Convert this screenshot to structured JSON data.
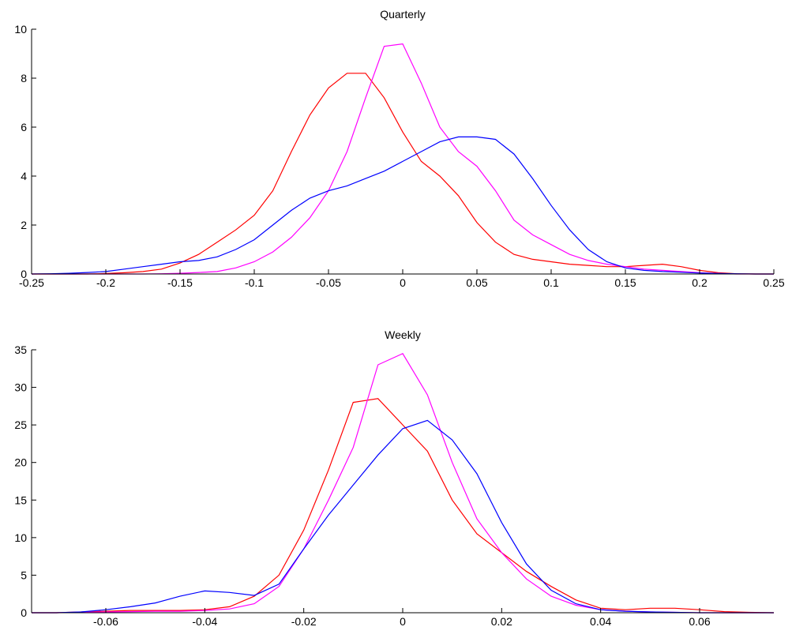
{
  "chart_data": [
    {
      "type": "line",
      "title": "Quarterly",
      "x": [
        -0.25,
        -0.2375,
        -0.225,
        -0.2125,
        -0.2,
        -0.1875,
        -0.175,
        -0.1625,
        -0.15,
        -0.1375,
        -0.125,
        -0.1125,
        -0.1,
        -0.0875,
        -0.075,
        -0.0625,
        -0.05,
        -0.0375,
        -0.025,
        -0.0125,
        0,
        0.0125,
        0.025,
        0.0375,
        0.05,
        0.0625,
        0.075,
        0.0875,
        0.1,
        0.1125,
        0.125,
        0.1375,
        0.15,
        0.1625,
        0.175,
        0.1875,
        0.2,
        0.2125,
        0.225,
        0.2375,
        0.25
      ],
      "series": [
        {
          "color": "#ff0000",
          "values": [
            0,
            0,
            0,
            0,
            0.02,
            0.05,
            0.1,
            0.2,
            0.45,
            0.8,
            1.3,
            1.8,
            2.4,
            3.4,
            5.0,
            6.5,
            7.6,
            8.2,
            8.2,
            7.2,
            5.8,
            4.6,
            4.0,
            3.2,
            2.1,
            1.3,
            0.8,
            0.6,
            0.5,
            0.4,
            0.35,
            0.3,
            0.3,
            0.35,
            0.4,
            0.3,
            0.15,
            0.05,
            0.01,
            0,
            0
          ]
        },
        {
          "color": "#ff00ff",
          "values": [
            0,
            0,
            0,
            0,
            0,
            0,
            0,
            0.01,
            0.03,
            0.06,
            0.1,
            0.25,
            0.5,
            0.9,
            1.5,
            2.3,
            3.4,
            5.0,
            7.2,
            9.3,
            9.4,
            7.8,
            6.0,
            5.0,
            4.4,
            3.4,
            2.2,
            1.6,
            1.2,
            0.8,
            0.55,
            0.4,
            0.3,
            0.2,
            0.15,
            0.1,
            0.05,
            0.02,
            0,
            0,
            0
          ]
        },
        {
          "color": "#0000ff",
          "values": [
            0,
            0.01,
            0.03,
            0.06,
            0.1,
            0.2,
            0.3,
            0.4,
            0.5,
            0.55,
            0.7,
            1.0,
            1.4,
            2.0,
            2.6,
            3.1,
            3.4,
            3.6,
            3.9,
            4.2,
            4.6,
            5.0,
            5.4,
            5.6,
            5.6,
            5.5,
            4.9,
            3.9,
            2.8,
            1.8,
            1.0,
            0.5,
            0.25,
            0.15,
            0.1,
            0.07,
            0.04,
            0.02,
            0.01,
            0,
            0
          ]
        }
      ],
      "xlim": [
        -0.25,
        0.25
      ],
      "ylim": [
        0,
        10
      ],
      "xticks": [
        -0.25,
        -0.2,
        -0.15,
        -0.1,
        -0.05,
        0,
        0.05,
        0.1,
        0.15,
        0.2,
        0.25
      ],
      "yticks": [
        0,
        2,
        4,
        6,
        8,
        10
      ]
    },
    {
      "type": "line",
      "title": "Weekly",
      "x": [
        -0.075,
        -0.07,
        -0.065,
        -0.06,
        -0.055,
        -0.05,
        -0.045,
        -0.04,
        -0.035,
        -0.03,
        -0.025,
        -0.02,
        -0.015,
        -0.01,
        -0.005,
        0,
        0.005,
        0.01,
        0.015,
        0.02,
        0.025,
        0.03,
        0.035,
        0.04,
        0.045,
        0.05,
        0.055,
        0.06,
        0.065,
        0.07,
        0.075
      ],
      "series": [
        {
          "color": "#ff0000",
          "values": [
            0,
            0,
            0.1,
            0.2,
            0.3,
            0.3,
            0.3,
            0.4,
            0.8,
            2.2,
            5.0,
            11,
            19,
            28,
            28.5,
            25,
            21.5,
            15,
            10.5,
            8,
            5.5,
            3.5,
            1.7,
            0.6,
            0.4,
            0.6,
            0.6,
            0.4,
            0.15,
            0.05,
            0
          ]
        },
        {
          "color": "#ff00ff",
          "values": [
            0,
            0,
            0.05,
            0.1,
            0.15,
            0.2,
            0.2,
            0.3,
            0.5,
            1.2,
            3.5,
            8.5,
            15,
            22,
            33,
            34.5,
            29,
            20,
            12.5,
            8,
            4.5,
            2.2,
            1.0,
            0.4,
            0.2,
            0.1,
            0.05,
            0,
            0,
            0,
            0
          ]
        },
        {
          "color": "#0000ff",
          "values": [
            0,
            0,
            0.1,
            0.4,
            0.8,
            1.3,
            2.2,
            2.9,
            2.7,
            2.3,
            3.8,
            8.5,
            13,
            17,
            21,
            24.5,
            25.6,
            23,
            18.5,
            12,
            6.5,
            3.0,
            1.2,
            0.4,
            0.2,
            0.1,
            0.05,
            0,
            0,
            0,
            0
          ]
        }
      ],
      "xlim": [
        -0.075,
        0.075
      ],
      "ylim": [
        0,
        35
      ],
      "xticks": [
        -0.06,
        -0.04,
        -0.02,
        0,
        0.02,
        0.04,
        0.06
      ],
      "yticks": [
        0,
        5,
        10,
        15,
        20,
        25,
        30,
        35
      ]
    }
  ]
}
